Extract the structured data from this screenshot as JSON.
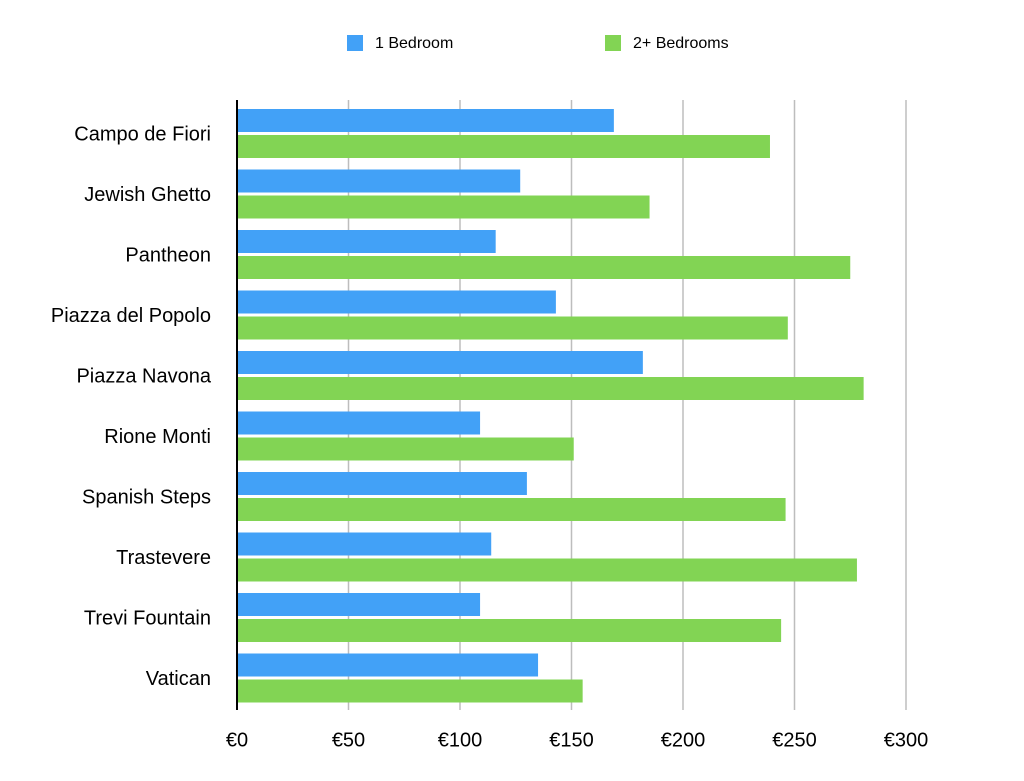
{
  "chart_data": {
    "type": "bar",
    "orientation": "horizontal",
    "categories": [
      "Campo de Fiori",
      "Jewish Ghetto",
      "Pantheon",
      "Piazza del Popolo",
      "Piazza Navona",
      "Rione Monti",
      "Spanish Steps",
      "Trastevere",
      "Trevi Fountain",
      "Vatican"
    ],
    "series": [
      {
        "name": "1 Bedroom",
        "color": "#42a1f7",
        "values": [
          169,
          127,
          116,
          143,
          182,
          109,
          130,
          114,
          109,
          135
        ]
      },
      {
        "name": "2+ Bedrooms",
        "color": "#82d454",
        "values": [
          239,
          185,
          275,
          247,
          281,
          151,
          246,
          278,
          244,
          155
        ]
      }
    ],
    "x_ticks": [
      "€0",
      "€50",
      "€100",
      "€150",
      "€200",
      "€250",
      "€300"
    ],
    "x_tick_values": [
      0,
      50,
      100,
      150,
      200,
      250,
      300
    ],
    "xlim": [
      0,
      300
    ],
    "grid": "vertical",
    "legend_position": "top"
  }
}
